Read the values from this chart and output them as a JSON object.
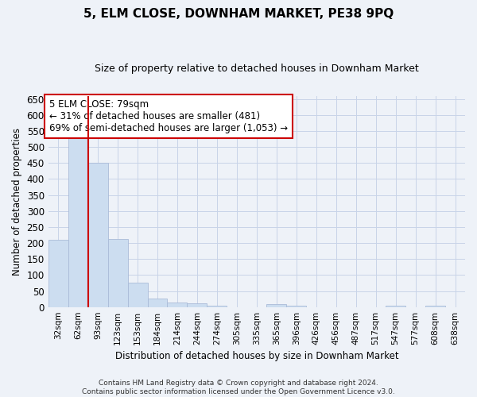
{
  "title": "5, ELM CLOSE, DOWNHAM MARKET, PE38 9PQ",
  "subtitle": "Size of property relative to detached houses in Downham Market",
  "xlabel": "Distribution of detached houses by size in Downham Market",
  "ylabel": "Number of detached properties",
  "categories": [
    "32sqm",
    "62sqm",
    "93sqm",
    "123sqm",
    "153sqm",
    "184sqm",
    "214sqm",
    "244sqm",
    "274sqm",
    "305sqm",
    "335sqm",
    "365sqm",
    "396sqm",
    "426sqm",
    "456sqm",
    "487sqm",
    "517sqm",
    "547sqm",
    "577sqm",
    "608sqm",
    "638sqm"
  ],
  "values": [
    209,
    533,
    450,
    213,
    77,
    27,
    15,
    11,
    5,
    0,
    0,
    9,
    5,
    0,
    0,
    0,
    0,
    5,
    0,
    5,
    0
  ],
  "bar_color": "#ccddf0",
  "bar_edge_color": "#aabbd8",
  "grid_color": "#c8d4e8",
  "vline_color": "#cc0000",
  "annotation_text": "5 ELM CLOSE: 79sqm\n← 31% of detached houses are smaller (481)\n69% of semi-detached houses are larger (1,053) →",
  "annotation_box_color": "#ffffff",
  "annotation_box_edge": "#cc0000",
  "ylim": [
    0,
    660
  ],
  "yticks": [
    0,
    50,
    100,
    150,
    200,
    250,
    300,
    350,
    400,
    450,
    500,
    550,
    600,
    650
  ],
  "footer_text": "Contains HM Land Registry data © Crown copyright and database right 2024.\nContains public sector information licensed under the Open Government Licence v3.0.",
  "background_color": "#eef2f8",
  "plot_bg_color": "#eef2f8",
  "title_fontsize": 11,
  "subtitle_fontsize": 9
}
